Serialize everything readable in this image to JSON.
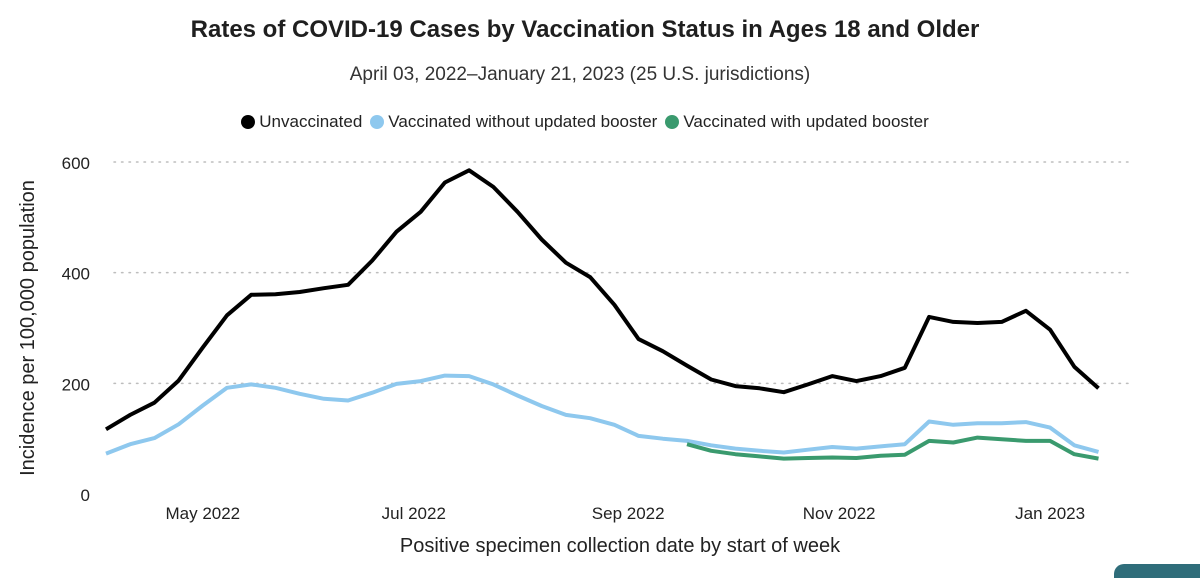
{
  "chart_data": {
    "type": "line",
    "title": "Rates of COVID-19 Cases by Vaccination Status in Ages 18 and Older",
    "subtitle": "April 03, 2022–January 21, 2023 (25 U.S. jurisdictions)",
    "xlabel": "Positive specimen collection date by start of week",
    "ylabel": "Incidence per 100,000 population",
    "ylim": [
      0,
      600
    ],
    "yticks": [
      0,
      200,
      400,
      600
    ],
    "xlim": [
      "2022-04-03",
      "2023-01-27"
    ],
    "xticks": [
      {
        "date": "2022-05-01",
        "label": "May 2022"
      },
      {
        "date": "2022-07-01",
        "label": "Jul 2022"
      },
      {
        "date": "2022-09-01",
        "label": "Sep 2022"
      },
      {
        "date": "2022-11-01",
        "label": "Nov 2022"
      },
      {
        "date": "2023-01-01",
        "label": "Jan 2023"
      }
    ],
    "grid": "horizontal dotted",
    "legend_position": "top-center",
    "x": [
      "2022-04-03",
      "2022-04-10",
      "2022-04-17",
      "2022-04-24",
      "2022-05-01",
      "2022-05-08",
      "2022-05-15",
      "2022-05-22",
      "2022-05-29",
      "2022-06-05",
      "2022-06-12",
      "2022-06-19",
      "2022-06-26",
      "2022-07-03",
      "2022-07-10",
      "2022-07-17",
      "2022-07-24",
      "2022-07-31",
      "2022-08-07",
      "2022-08-14",
      "2022-08-21",
      "2022-08-28",
      "2022-09-04",
      "2022-09-11",
      "2022-09-18",
      "2022-09-25",
      "2022-10-02",
      "2022-10-09",
      "2022-10-16",
      "2022-10-23",
      "2022-10-30",
      "2022-11-06",
      "2022-11-13",
      "2022-11-20",
      "2022-11-27",
      "2022-12-04",
      "2022-12-11",
      "2022-12-18",
      "2022-12-25",
      "2023-01-01",
      "2023-01-08",
      "2023-01-15"
    ],
    "series": [
      {
        "name": "Unvaccinated",
        "color": "#000000",
        "values": [
          117,
          143,
          165,
          205,
          265,
          323,
          360,
          361,
          365,
          372,
          378,
          422,
          474,
          510,
          563,
          585,
          555,
          510,
          460,
          418,
          392,
          342,
          280,
          258,
          232,
          207,
          195,
          191,
          184,
          198,
          213,
          204,
          213,
          228,
          320,
          311,
          309,
          311,
          331,
          297,
          230,
          191
        ]
      },
      {
        "name": "Vaccinated without updated booster",
        "color": "#8ec8ee",
        "values": [
          73,
          90,
          101,
          126,
          160,
          192,
          198,
          192,
          181,
          172,
          169,
          183,
          199,
          204,
          214,
          213,
          198,
          178,
          159,
          143,
          137,
          125,
          105,
          100,
          96,
          88,
          82,
          78,
          75,
          80,
          85,
          82,
          86,
          90,
          131,
          125,
          128,
          128,
          130,
          120,
          88,
          76
        ]
      },
      {
        "name": "Vaccinated with updated booster",
        "color": "#3a9a6e",
        "values": [
          null,
          null,
          null,
          null,
          null,
          null,
          null,
          null,
          null,
          null,
          null,
          null,
          null,
          null,
          null,
          null,
          null,
          null,
          null,
          null,
          null,
          null,
          null,
          null,
          90,
          78,
          72,
          68,
          64,
          65,
          66,
          65,
          69,
          71,
          96,
          93,
          102,
          99,
          96,
          96,
          72,
          64
        ]
      }
    ]
  },
  "corner_tab_color": "#2f6d7a"
}
